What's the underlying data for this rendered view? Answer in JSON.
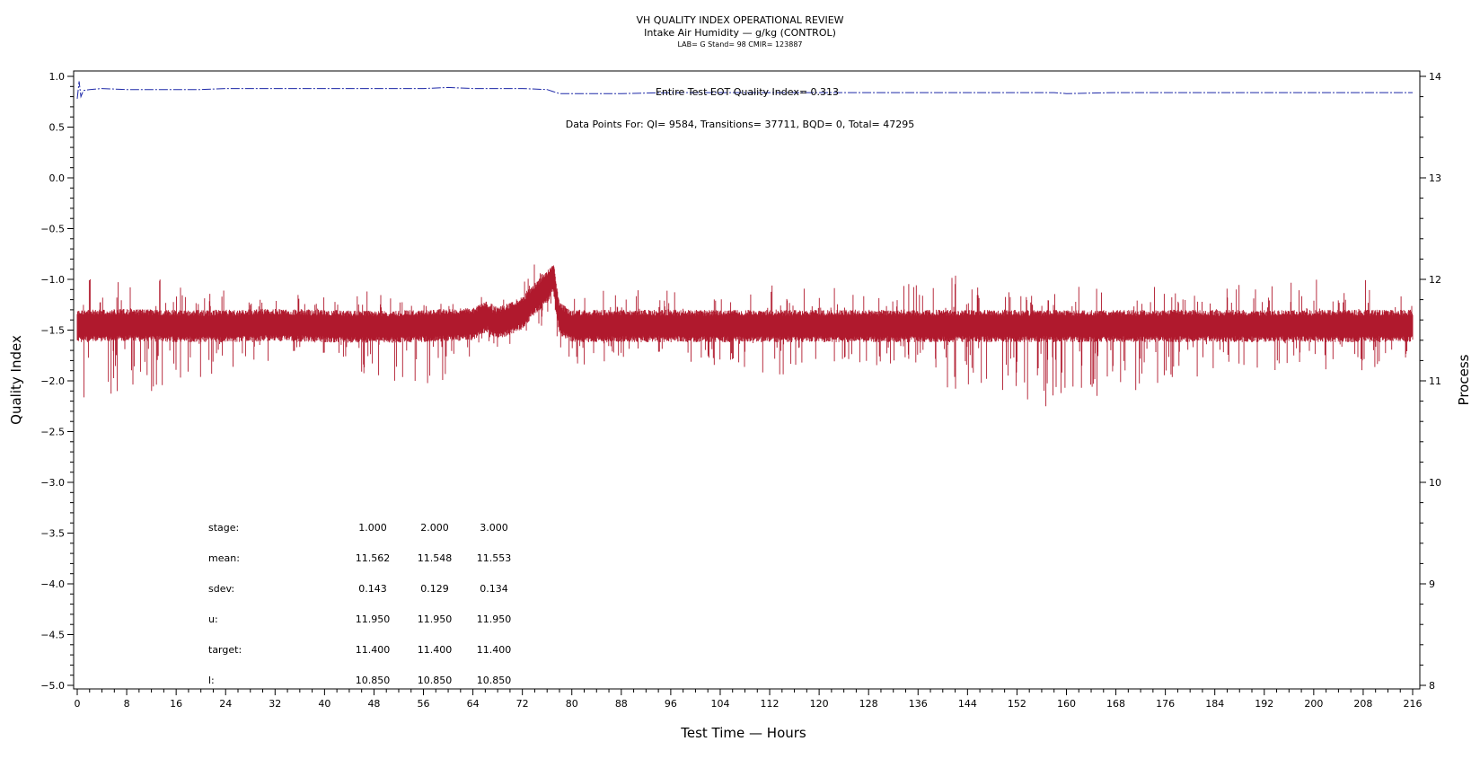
{
  "chart_data": {
    "type": "line",
    "title": "VH QUALITY INDEX OPERATIONAL REVIEW",
    "subtitle": "Intake Air Humidity — g/kg (CONTROL)",
    "lab_line": "LAB= G Stand= 98 CMIR= 123887",
    "xlabel": "Test Time — Hours",
    "ylabel": "Quality Index",
    "y2label": "Process",
    "xlim": [
      0,
      216
    ],
    "ylim": [
      -5.0,
      1.0
    ],
    "y2lim": [
      8,
      14
    ],
    "x_ticks": [
      "0",
      "8",
      "16",
      "24",
      "32",
      "40",
      "48",
      "56",
      "64",
      "72",
      "80",
      "88",
      "96",
      "104",
      "112",
      "120",
      "128",
      "136",
      "144",
      "152",
      "160",
      "168",
      "176",
      "184",
      "192",
      "200",
      "208",
      "216"
    ],
    "y_ticks": [
      "1.0",
      "0.5",
      "0.0",
      "−0.5",
      "−1.0",
      "−1.5",
      "−2.0",
      "−2.5",
      "−3.0",
      "−3.5",
      "−4.0",
      "−4.5",
      "−5.0"
    ],
    "y2_ticks": [
      "14",
      "13",
      "12",
      "11",
      "10",
      "9",
      "8"
    ],
    "grid": false,
    "annotations": {
      "qi_note": "Entire Test EOT Quality Index=   0.313",
      "points_note": "Data Points For: QI=  9584, Transitions= 37711, BQD=     0, Total= 47295"
    },
    "series": [
      {
        "axis": "left",
        "color": "#1f2aa8",
        "style": "dash-dot",
        "x": [
          0,
          0.3,
          0.6,
          1,
          2,
          4,
          8,
          12,
          16,
          20,
          24,
          32,
          40,
          48,
          56,
          60,
          64,
          68,
          72,
          76,
          77,
          78,
          80,
          88,
          96,
          104,
          112,
          120,
          128,
          136,
          144,
          152,
          158,
          160,
          168,
          176,
          184,
          192,
          200,
          208,
          216
        ],
        "y": [
          0.78,
          0.95,
          0.8,
          0.86,
          0.87,
          0.88,
          0.87,
          0.87,
          0.87,
          0.87,
          0.88,
          0.88,
          0.88,
          0.88,
          0.88,
          0.89,
          0.88,
          0.88,
          0.88,
          0.87,
          0.85,
          0.83,
          0.83,
          0.83,
          0.84,
          0.84,
          0.84,
          0.84,
          0.84,
          0.84,
          0.84,
          0.84,
          0.84,
          0.83,
          0.84,
          0.84,
          0.84,
          0.84,
          0.84,
          0.84,
          0.84
        ]
      },
      {
        "axis": "right",
        "color": "#b0192d",
        "style": "solid",
        "x": [
          0,
          8,
          16,
          24,
          32,
          40,
          48,
          56,
          64,
          66,
          68,
          70,
          72,
          74,
          76,
          77,
          78,
          80,
          88,
          96,
          104,
          112,
          120,
          128,
          136,
          144,
          152,
          160,
          168,
          176,
          184,
          192,
          200,
          208,
          216
        ],
        "mean": [
          11.55,
          11.56,
          11.55,
          11.55,
          11.56,
          11.55,
          11.54,
          11.55,
          11.57,
          11.64,
          11.58,
          11.62,
          11.68,
          11.82,
          11.93,
          12.04,
          11.62,
          11.55,
          11.55,
          11.55,
          11.55,
          11.55,
          11.55,
          11.55,
          11.55,
          11.55,
          11.55,
          11.55,
          11.55,
          11.55,
          11.55,
          11.55,
          11.55,
          11.55,
          11.55
        ],
        "range_min": [
          10.75,
          10.9,
          10.9,
          11.1,
          11.2,
          11.2,
          11.0,
          10.8,
          11.2,
          11.4,
          11.3,
          11.35,
          11.4,
          11.5,
          11.55,
          11.6,
          11.25,
          11.1,
          11.2,
          11.2,
          11.1,
          11.0,
          11.1,
          11.1,
          11.05,
          10.85,
          10.75,
          10.7,
          10.8,
          11.0,
          11.05,
          11.05,
          11.1,
          11.1,
          11.2
        ],
        "range_max": [
          12.05,
          12.0,
          12.0,
          11.9,
          11.85,
          11.85,
          11.9,
          11.9,
          11.85,
          11.85,
          11.8,
          11.9,
          12.1,
          12.18,
          12.2,
          12.22,
          11.95,
          11.95,
          11.9,
          11.9,
          11.9,
          11.95,
          11.9,
          11.95,
          12.0,
          12.05,
          12.0,
          11.95,
          11.95,
          11.95,
          11.95,
          11.95,
          12.0,
          12.0,
          11.95
        ]
      }
    ],
    "stats_table": {
      "columns": [
        "stage:",
        "1.000",
        "2.000",
        "3.000"
      ],
      "rows": [
        [
          "mean:",
          "11.562",
          "11.548",
          "11.553"
        ],
        [
          "sdev:",
          "0.143",
          "0.129",
          "0.134"
        ],
        [
          "u:",
          "11.950",
          "11.950",
          "11.950"
        ],
        [
          "target:",
          "11.400",
          "11.400",
          "11.400"
        ],
        [
          "l:",
          "10.850",
          "10.850",
          "10.850"
        ]
      ]
    }
  }
}
